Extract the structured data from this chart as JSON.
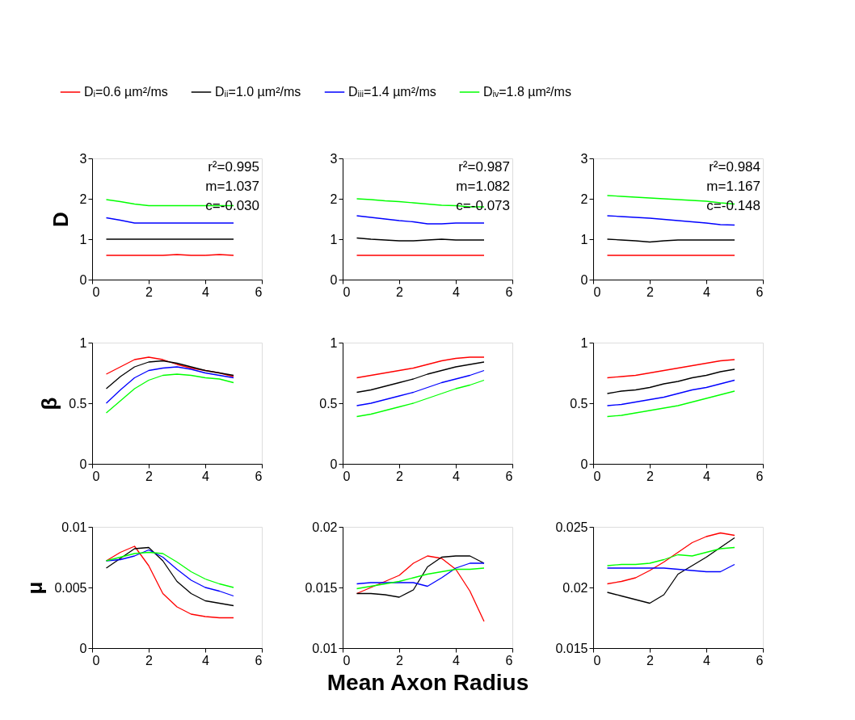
{
  "chart_data": [
    {
      "type": "line",
      "ylabel": "D",
      "legend": "top",
      "grid": false,
      "x": [
        0.5,
        1,
        1.5,
        2,
        2.5,
        3,
        3.5,
        4,
        4.5,
        5
      ],
      "xlim": [
        0,
        6
      ],
      "xticks": [
        0,
        2,
        4,
        6
      ],
      "ylim": [
        0,
        3
      ],
      "yticks": [
        0,
        1,
        2,
        3
      ],
      "annotations": [
        "r²=0.995",
        "m=1.037",
        "c=-0.030"
      ],
      "series": [
        {
          "name": "Dᵢ=0.6 µm²/ms",
          "color": "#ff0000",
          "values": [
            0.6,
            0.6,
            0.6,
            0.6,
            0.6,
            0.62,
            0.6,
            0.6,
            0.62,
            0.6
          ]
        },
        {
          "name": "Dᵢᵢ=1.0 µm²/ms",
          "color": "#000000",
          "values": [
            1.0,
            1.0,
            1.0,
            1.0,
            1.0,
            1.0,
            1.0,
            1.0,
            1.0,
            1.0
          ]
        },
        {
          "name": "Dᵢᵢᵢ=1.4 µm²/ms",
          "color": "#0000ff",
          "values": [
            1.53,
            1.47,
            1.4,
            1.4,
            1.4,
            1.4,
            1.4,
            1.4,
            1.4,
            1.4
          ]
        },
        {
          "name": "Dᵢᵥ=1.8 µm²/ms",
          "color": "#00ff00",
          "values": [
            1.98,
            1.93,
            1.87,
            1.83,
            1.83,
            1.83,
            1.83,
            1.83,
            1.83,
            1.83
          ]
        }
      ]
    },
    {
      "type": "line",
      "grid": false,
      "x": [
        0.5,
        1,
        1.5,
        2,
        2.5,
        3,
        3.5,
        4,
        4.5,
        5
      ],
      "xlim": [
        0,
        6
      ],
      "xticks": [
        0,
        2,
        4,
        6
      ],
      "ylim": [
        0,
        3
      ],
      "yticks": [
        0,
        1,
        2,
        3
      ],
      "annotations": [
        "r²=0.987",
        "m=1.082",
        "c=-0.073"
      ],
      "series": [
        {
          "color": "#ff0000",
          "values": [
            0.6,
            0.6,
            0.6,
            0.6,
            0.6,
            0.6,
            0.6,
            0.6,
            0.6,
            0.6
          ]
        },
        {
          "color": "#000000",
          "values": [
            1.03,
            1.0,
            0.98,
            0.96,
            0.96,
            0.98,
            1.0,
            0.98,
            0.98,
            0.98
          ]
        },
        {
          "color": "#0000ff",
          "values": [
            1.58,
            1.54,
            1.5,
            1.46,
            1.43,
            1.38,
            1.38,
            1.4,
            1.4,
            1.4
          ]
        },
        {
          "color": "#00ff00",
          "values": [
            2.0,
            1.98,
            1.95,
            1.93,
            1.9,
            1.87,
            1.84,
            1.83,
            1.8,
            1.8
          ]
        }
      ]
    },
    {
      "type": "line",
      "grid": false,
      "x": [
        0.5,
        1,
        1.5,
        2,
        2.5,
        3,
        3.5,
        4,
        4.5,
        5
      ],
      "xlim": [
        0,
        6
      ],
      "xticks": [
        0,
        2,
        4,
        6
      ],
      "ylim": [
        0,
        3
      ],
      "yticks": [
        0,
        1,
        2,
        3
      ],
      "annotations": [
        "r²=0.984",
        "m=1.167",
        "c=-0.148"
      ],
      "series": [
        {
          "color": "#ff0000",
          "values": [
            0.6,
            0.6,
            0.6,
            0.6,
            0.6,
            0.6,
            0.6,
            0.6,
            0.6,
            0.6
          ]
        },
        {
          "color": "#000000",
          "values": [
            1.0,
            0.98,
            0.96,
            0.93,
            0.96,
            0.98,
            0.98,
            0.98,
            0.98,
            0.98
          ]
        },
        {
          "color": "#0000ff",
          "values": [
            1.58,
            1.56,
            1.54,
            1.52,
            1.49,
            1.46,
            1.43,
            1.4,
            1.36,
            1.35
          ]
        },
        {
          "color": "#00ff00",
          "values": [
            2.08,
            2.06,
            2.04,
            2.02,
            2.0,
            1.98,
            1.96,
            1.94,
            1.9,
            1.87
          ]
        }
      ]
    },
    {
      "type": "line",
      "ylabel": "β",
      "grid": false,
      "x": [
        0.5,
        1,
        1.5,
        2,
        2.5,
        3,
        3.5,
        4,
        4.5,
        5
      ],
      "xlim": [
        0,
        6
      ],
      "xticks": [
        0,
        2,
        4,
        6
      ],
      "ylim": [
        0,
        1
      ],
      "yticks": [
        0,
        0.5,
        1
      ],
      "series": [
        {
          "color": "#ff0000",
          "values": [
            0.74,
            0.8,
            0.86,
            0.88,
            0.86,
            0.82,
            0.79,
            0.77,
            0.75,
            0.72
          ]
        },
        {
          "color": "#000000",
          "values": [
            0.62,
            0.72,
            0.8,
            0.84,
            0.85,
            0.83,
            0.8,
            0.77,
            0.75,
            0.73
          ]
        },
        {
          "color": "#0000ff",
          "values": [
            0.5,
            0.61,
            0.71,
            0.77,
            0.79,
            0.8,
            0.78,
            0.75,
            0.73,
            0.71
          ]
        },
        {
          "color": "#00ff00",
          "values": [
            0.42,
            0.52,
            0.62,
            0.69,
            0.73,
            0.74,
            0.73,
            0.71,
            0.7,
            0.67
          ]
        }
      ]
    },
    {
      "type": "line",
      "grid": false,
      "x": [
        0.5,
        1,
        1.5,
        2,
        2.5,
        3,
        3.5,
        4,
        4.5,
        5
      ],
      "xlim": [
        0,
        6
      ],
      "xticks": [
        0,
        2,
        4,
        6
      ],
      "ylim": [
        0,
        1
      ],
      "yticks": [
        0,
        0.5,
        1
      ],
      "series": [
        {
          "color": "#ff0000",
          "values": [
            0.71,
            0.73,
            0.75,
            0.77,
            0.79,
            0.82,
            0.85,
            0.87,
            0.88,
            0.88
          ]
        },
        {
          "color": "#000000",
          "values": [
            0.59,
            0.61,
            0.64,
            0.67,
            0.7,
            0.74,
            0.77,
            0.8,
            0.82,
            0.84
          ]
        },
        {
          "color": "#0000ff",
          "values": [
            0.48,
            0.5,
            0.53,
            0.56,
            0.59,
            0.63,
            0.67,
            0.7,
            0.73,
            0.77
          ]
        },
        {
          "color": "#00ff00",
          "values": [
            0.39,
            0.41,
            0.44,
            0.47,
            0.5,
            0.54,
            0.58,
            0.62,
            0.65,
            0.69
          ]
        }
      ]
    },
    {
      "type": "line",
      "grid": false,
      "x": [
        0.5,
        1,
        1.5,
        2,
        2.5,
        3,
        3.5,
        4,
        4.5,
        5
      ],
      "xlim": [
        0,
        6
      ],
      "xticks": [
        0,
        2,
        4,
        6
      ],
      "ylim": [
        0,
        1
      ],
      "yticks": [
        0,
        0.5,
        1
      ],
      "series": [
        {
          "color": "#ff0000",
          "values": [
            0.71,
            0.72,
            0.73,
            0.75,
            0.77,
            0.79,
            0.81,
            0.83,
            0.85,
            0.86
          ]
        },
        {
          "color": "#000000",
          "values": [
            0.58,
            0.6,
            0.61,
            0.63,
            0.66,
            0.68,
            0.71,
            0.73,
            0.76,
            0.78
          ]
        },
        {
          "color": "#0000ff",
          "values": [
            0.48,
            0.49,
            0.51,
            0.53,
            0.55,
            0.58,
            0.61,
            0.63,
            0.66,
            0.69
          ]
        },
        {
          "color": "#00ff00",
          "values": [
            0.39,
            0.4,
            0.42,
            0.44,
            0.46,
            0.48,
            0.51,
            0.54,
            0.57,
            0.6
          ]
        }
      ]
    },
    {
      "type": "line",
      "ylabel": "μ",
      "grid": false,
      "x": [
        0.5,
        1,
        1.5,
        2,
        2.5,
        3,
        3.5,
        4,
        4.5,
        5
      ],
      "xlim": [
        0,
        6
      ],
      "xticks": [
        0,
        2,
        4,
        6
      ],
      "ylim": [
        0,
        0.01
      ],
      "yticks": [
        0,
        0.005,
        0.01
      ],
      "series": [
        {
          "color": "#ff0000",
          "values": [
            0.0072,
            0.0079,
            0.0084,
            0.0068,
            0.0045,
            0.0034,
            0.0028,
            0.0026,
            0.0025,
            0.0025
          ]
        },
        {
          "color": "#000000",
          "values": [
            0.0066,
            0.0074,
            0.0082,
            0.0083,
            0.0072,
            0.0055,
            0.0045,
            0.0039,
            0.0037,
            0.0035
          ]
        },
        {
          "color": "#0000ff",
          "values": [
            0.0072,
            0.0073,
            0.0076,
            0.0081,
            0.0075,
            0.0065,
            0.0056,
            0.005,
            0.0047,
            0.0043
          ]
        },
        {
          "color": "#00ff00",
          "values": [
            0.0072,
            0.0075,
            0.0078,
            0.0079,
            0.0078,
            0.0071,
            0.0063,
            0.0057,
            0.0053,
            0.005
          ]
        }
      ]
    },
    {
      "type": "line",
      "xlabel": "Mean Axon Radius",
      "grid": false,
      "x": [
        0.5,
        1,
        1.5,
        2,
        2.5,
        3,
        3.5,
        4,
        4.5,
        5
      ],
      "xlim": [
        0,
        6
      ],
      "xticks": [
        0,
        2,
        4,
        6
      ],
      "ylim": [
        0.01,
        0.02
      ],
      "yticks": [
        0.01,
        0.015,
        0.02
      ],
      "series": [
        {
          "color": "#ff0000",
          "values": [
            0.0145,
            0.015,
            0.0155,
            0.016,
            0.017,
            0.0176,
            0.0174,
            0.0165,
            0.0147,
            0.0122
          ]
        },
        {
          "color": "#000000",
          "values": [
            0.0145,
            0.0145,
            0.0144,
            0.0142,
            0.0148,
            0.0167,
            0.0175,
            0.0176,
            0.0176,
            0.017
          ]
        },
        {
          "color": "#0000ff",
          "values": [
            0.0153,
            0.0154,
            0.0154,
            0.0154,
            0.0154,
            0.0151,
            0.0158,
            0.0166,
            0.017,
            0.017
          ]
        },
        {
          "color": "#00ff00",
          "values": [
            0.0149,
            0.0151,
            0.0153,
            0.0155,
            0.0158,
            0.0161,
            0.0163,
            0.0165,
            0.0165,
            0.0166
          ]
        }
      ]
    },
    {
      "type": "line",
      "grid": false,
      "x": [
        0.5,
        1,
        1.5,
        2,
        2.5,
        3,
        3.5,
        4,
        4.5,
        5
      ],
      "xlim": [
        0,
        6
      ],
      "xticks": [
        0,
        2,
        4,
        6
      ],
      "ylim": [
        0.015,
        0.025
      ],
      "yticks": [
        0.015,
        0.02,
        0.025
      ],
      "series": [
        {
          "color": "#ff0000",
          "values": [
            0.0203,
            0.0205,
            0.0208,
            0.0214,
            0.0221,
            0.0229,
            0.0237,
            0.0242,
            0.0245,
            0.0243
          ]
        },
        {
          "color": "#000000",
          "values": [
            0.0196,
            0.0193,
            0.019,
            0.0187,
            0.0194,
            0.0211,
            0.0218,
            0.0225,
            0.0233,
            0.0241
          ]
        },
        {
          "color": "#0000ff",
          "values": [
            0.0216,
            0.0216,
            0.0216,
            0.0216,
            0.0216,
            0.0215,
            0.0214,
            0.0213,
            0.0213,
            0.0219
          ]
        },
        {
          "color": "#00ff00",
          "values": [
            0.0218,
            0.0219,
            0.0219,
            0.022,
            0.0223,
            0.0227,
            0.0226,
            0.0229,
            0.0232,
            0.0233
          ]
        }
      ]
    }
  ]
}
